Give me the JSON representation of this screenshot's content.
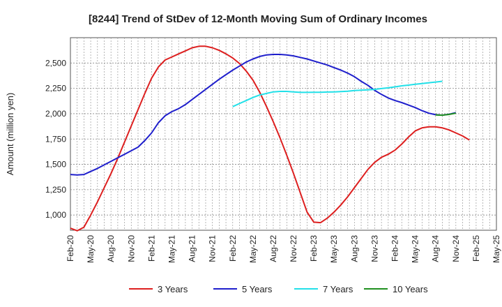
{
  "chart_data": {
    "type": "line",
    "title": "[8244]  Trend of StDev of 12-Month Moving Sum of Ordinary Incomes",
    "xlabel": "",
    "ylabel": "Amount (million yen)",
    "ylim": [
      850,
      2750
    ],
    "yticks": [
      1000,
      1250,
      1500,
      1750,
      2000,
      2250,
      2500
    ],
    "ytick_labels": [
      "1,000",
      "1,250",
      "1,500",
      "1,750",
      "2,000",
      "2,250",
      "2,500"
    ],
    "x_tick_labels": [
      "Feb-20",
      "May-20",
      "Aug-20",
      "Nov-20",
      "Feb-21",
      "May-21",
      "Aug-21",
      "Nov-21",
      "Feb-22",
      "May-22",
      "Aug-22",
      "Nov-22",
      "Feb-23",
      "May-23",
      "Aug-23",
      "Nov-23",
      "Feb-24",
      "May-24",
      "Aug-24",
      "Nov-24",
      "Feb-25",
      "May-25"
    ],
    "grid": true,
    "legend_position": "bottom",
    "series": [
      {
        "name": "3 Years",
        "color": "#dd1f1f",
        "start_index": 0,
        "values": [
          870,
          845,
          880,
          1000,
          1130,
          1270,
          1410,
          1560,
          1720,
          1880,
          2040,
          2200,
          2350,
          2460,
          2530,
          2560,
          2590,
          2620,
          2650,
          2665,
          2665,
          2650,
          2625,
          2590,
          2550,
          2495,
          2420,
          2330,
          2210,
          2070,
          1920,
          1760,
          1590,
          1410,
          1220,
          1030,
          930,
          925,
          970,
          1030,
          1100,
          1180,
          1270,
          1360,
          1450,
          1520,
          1570,
          1600,
          1640,
          1700,
          1770,
          1830,
          1860,
          1870,
          1870,
          1860,
          1840,
          1810,
          1780,
          1740
        ]
      },
      {
        "name": "5 Years",
        "color": "#1f1fcc",
        "start_index": 0,
        "values": [
          1400,
          1395,
          1400,
          1430,
          1460,
          1495,
          1530,
          1565,
          1600,
          1635,
          1670,
          1735,
          1810,
          1910,
          1980,
          2020,
          2050,
          2090,
          2140,
          2190,
          2240,
          2290,
          2340,
          2385,
          2430,
          2470,
          2510,
          2540,
          2565,
          2580,
          2585,
          2585,
          2580,
          2570,
          2555,
          2540,
          2520,
          2500,
          2480,
          2455,
          2430,
          2400,
          2365,
          2320,
          2280,
          2230,
          2190,
          2155,
          2130,
          2110,
          2085,
          2060,
          2030,
          2005,
          1990,
          1985,
          1995,
          2010
        ]
      },
      {
        "name": "7 Years",
        "color": "#22e0e8",
        "start_index": 24,
        "values": [
          2070,
          2100,
          2130,
          2160,
          2185,
          2200,
          2215,
          2220,
          2220,
          2215,
          2210,
          2210,
          2212,
          2212,
          2214,
          2215,
          2218,
          2222,
          2228,
          2232,
          2236,
          2240,
          2248,
          2255,
          2265,
          2275,
          2282,
          2290,
          2298,
          2305,
          2312,
          2320
        ]
      },
      {
        "name": "10 Years",
        "color": "#1f8f1f",
        "start_index": 54,
        "values": [
          1988,
          1985,
          1993,
          2005
        ]
      }
    ]
  }
}
